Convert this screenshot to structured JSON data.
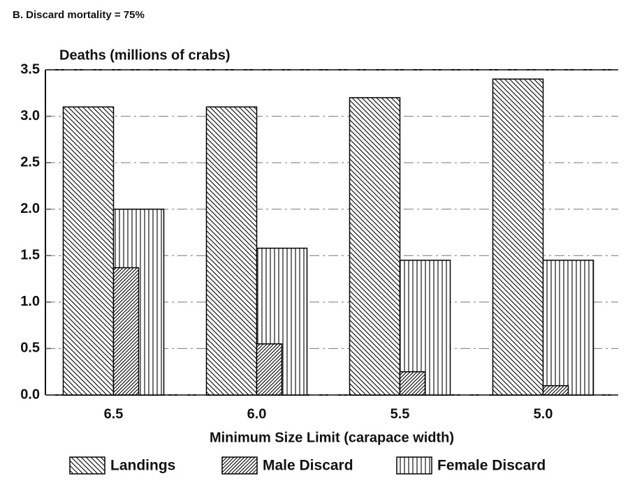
{
  "chart_data": {
    "type": "bar",
    "title": "B. Discard mortality = 75%",
    "y_label": "Deaths (millions of crabs)",
    "x_label": "Minimum Size Limit (carapace width)",
    "categories": [
      "6.5",
      "6.0",
      "5.5",
      "5.0"
    ],
    "series": [
      {
        "name": "Landings",
        "color": "#000000",
        "hatch": "backslash",
        "values": [
          3.1,
          3.1,
          3.2,
          3.4
        ]
      },
      {
        "name": "Male Discard",
        "color": "#000000",
        "hatch": "slash",
        "values": [
          1.37,
          0.55,
          0.25,
          0.1
        ]
      },
      {
        "name": "Female Discard",
        "color": "#000000",
        "hatch": "vertical",
        "values": [
          2.0,
          1.58,
          1.45,
          1.45
        ]
      }
    ],
    "ylim": [
      0,
      3.5
    ],
    "yticks": [
      {
        "value": 0,
        "label": "0.0"
      },
      0.5,
      {
        "value": 1,
        "label": "1.0"
      },
      1.5,
      {
        "value": 2,
        "label": "2.0"
      },
      2.5,
      {
        "value": 3,
        "label": "3.0"
      },
      3.5
    ],
    "grid": true
  }
}
